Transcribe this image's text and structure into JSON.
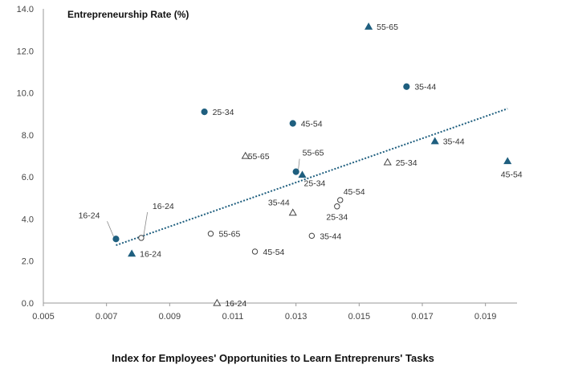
{
  "chart_data": {
    "type": "scatter",
    "title": "",
    "ylabel": "Entrepreneurship Rate (%)",
    "xlabel": "Index for Employees' Opportunities to Learn Entreprenurs' Tasks",
    "xlim": [
      0.005,
      0.02
    ],
    "ylim": [
      0,
      14
    ],
    "x_ticks": [
      "0.005",
      "0.007",
      "0.009",
      "0.011",
      "0.013",
      "0.015",
      "0.017",
      "0.019"
    ],
    "y_ticks": [
      "0.0",
      "2.0",
      "4.0",
      "6.0",
      "8.0",
      "10.0",
      "12.0",
      "14.0"
    ],
    "x_tick_values": [
      0.005,
      0.007,
      0.009,
      0.011,
      0.013,
      0.015,
      0.017,
      0.019
    ],
    "y_tick_values": [
      0,
      2,
      4,
      6,
      8,
      10,
      12,
      14
    ],
    "grid": false,
    "legend": "none",
    "colors": {
      "marker": "#1f5f7f",
      "trendline": "#1f5f7f",
      "axis": "#999999"
    },
    "trendline": {
      "style": "dotted",
      "x": [
        0.0073,
        0.0197
      ],
      "y": [
        2.75,
        9.25
      ]
    },
    "points": [
      {
        "marker": "filled-circle",
        "x": 0.0073,
        "y": 3.05,
        "label": "16-24"
      },
      {
        "marker": "filled-circle",
        "x": 0.0101,
        "y": 9.1,
        "label": "25-34"
      },
      {
        "marker": "filled-circle",
        "x": 0.0165,
        "y": 10.3,
        "label": "35-44"
      },
      {
        "marker": "filled-circle",
        "x": 0.0129,
        "y": 8.55,
        "label": "45-54"
      },
      {
        "marker": "filled-circle",
        "x": 0.013,
        "y": 6.25,
        "label": "55-65"
      },
      {
        "marker": "filled-triangle",
        "x": 0.0078,
        "y": 2.35,
        "label": "16-24"
      },
      {
        "marker": "filled-triangle",
        "x": 0.0132,
        "y": 6.1,
        "label": "25-34"
      },
      {
        "marker": "filled-triangle",
        "x": 0.0174,
        "y": 7.7,
        "label": "35-44"
      },
      {
        "marker": "filled-triangle",
        "x": 0.0197,
        "y": 6.75,
        "label": "45-54"
      },
      {
        "marker": "filled-triangle",
        "x": 0.0153,
        "y": 13.15,
        "label": "55-65"
      },
      {
        "marker": "open-circle",
        "x": 0.0081,
        "y": 3.1,
        "label": "16-24"
      },
      {
        "marker": "open-circle",
        "x": 0.0143,
        "y": 4.6,
        "label": "25-34"
      },
      {
        "marker": "open-circle",
        "x": 0.0135,
        "y": 3.2,
        "label": "35-44"
      },
      {
        "marker": "open-circle",
        "x": 0.0144,
        "y": 4.9,
        "label": "45-54"
      },
      {
        "marker": "open-circle",
        "x": 0.0103,
        "y": 3.3,
        "label": "55-65"
      },
      {
        "marker": "open-circle",
        "x": 0.0117,
        "y": 2.45,
        "label": "45-54"
      },
      {
        "marker": "open-triangle",
        "x": 0.0105,
        "y": 0.0,
        "label": "16-24"
      },
      {
        "marker": "open-triangle",
        "x": 0.0159,
        "y": 6.7,
        "label": "25-34"
      },
      {
        "marker": "open-triangle",
        "x": 0.0129,
        "y": 4.3,
        "label": "35-44"
      },
      {
        "marker": "open-triangle",
        "x": 0.0114,
        "y": 7.0,
        "label": "55-65"
      }
    ]
  }
}
